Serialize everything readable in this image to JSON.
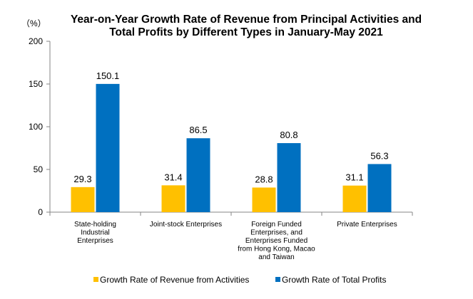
{
  "chart_data": {
    "type": "bar",
    "title": [
      "Year-on-Year Growth Rate of Revenue from Principal Activities  and",
      "Total Profits by Different Types in January-May 2021"
    ],
    "ylabel": "（%）",
    "ylim": [
      0,
      200
    ],
    "yticks": [
      "0",
      "50",
      "100",
      "150",
      "200"
    ],
    "ytick_values": [
      0,
      50,
      100,
      150,
      200
    ],
    "grid": false,
    "legend_position": "bottom",
    "categories": [
      [
        "State-holding",
        "Industrial",
        "Enterprises"
      ],
      [
        "Joint-stock Enterprises"
      ],
      [
        "Foreign Funded",
        "Enterprises, and",
        "Enterprises Funded",
        "from Hong Kong, Macao",
        "and Taiwan"
      ],
      [
        "Private Enterprises"
      ]
    ],
    "series": [
      {
        "name": "Growth Rate of Revenue from Activities",
        "color": "#FFC000",
        "values": [
          29.3,
          31.4,
          28.8,
          31.1
        ],
        "labels": [
          "29.3",
          "31.4",
          "28.8",
          "31.1"
        ]
      },
      {
        "name": "Growth Rate of Total Profits",
        "color": "#0070C0",
        "values": [
          150.1,
          86.5,
          80.8,
          56.3
        ],
        "labels": [
          "150.1",
          "86.5",
          "80.8",
          "56.3"
        ]
      }
    ]
  }
}
